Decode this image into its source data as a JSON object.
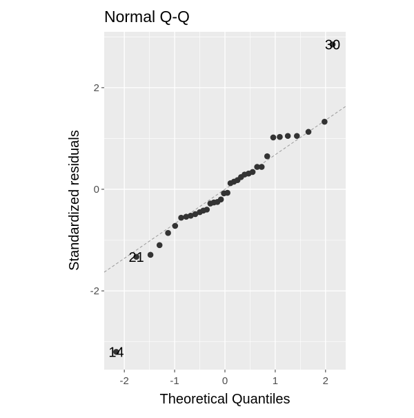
{
  "chart_data": {
    "type": "scatter",
    "title": "Normal Q-Q",
    "xlabel": "Theoretical Quantiles",
    "ylabel": "Standardized residuals",
    "xlim": [
      -2.4,
      2.4
    ],
    "ylim": [
      -3.55,
      3.1
    ],
    "x_ticks": [
      -2,
      -1,
      0,
      1,
      2
    ],
    "x_tick_labels": [
      "-2",
      "-1",
      "0",
      "1",
      "2"
    ],
    "y_ticks": [
      -2,
      0,
      2
    ],
    "y_tick_labels": [
      "-2",
      "0",
      "2"
    ],
    "grid": true,
    "background": "#EBEBEB",
    "point_color": "#333333",
    "reference_line": {
      "style": "dashed",
      "color": "#999999",
      "intercept": 0.0,
      "slope": 0.68
    },
    "points": [
      {
        "x": -2.16,
        "y": -3.2
      },
      {
        "x": -1.76,
        "y": -1.33
      },
      {
        "x": -1.48,
        "y": -1.29
      },
      {
        "x": -1.3,
        "y": -1.1
      },
      {
        "x": -1.13,
        "y": -0.86
      },
      {
        "x": -0.99,
        "y": -0.72
      },
      {
        "x": -0.87,
        "y": -0.56
      },
      {
        "x": -0.77,
        "y": -0.54
      },
      {
        "x": -0.68,
        "y": -0.52
      },
      {
        "x": -0.59,
        "y": -0.49
      },
      {
        "x": -0.5,
        "y": -0.45
      },
      {
        "x": -0.43,
        "y": -0.42
      },
      {
        "x": -0.36,
        "y": -0.4
      },
      {
        "x": -0.29,
        "y": -0.28
      },
      {
        "x": -0.22,
        "y": -0.26
      },
      {
        "x": -0.15,
        "y": -0.25
      },
      {
        "x": -0.08,
        "y": -0.2
      },
      {
        "x": -0.02,
        "y": -0.08
      },
      {
        "x": 0.05,
        "y": -0.07
      },
      {
        "x": 0.11,
        "y": 0.12
      },
      {
        "x": 0.18,
        "y": 0.15
      },
      {
        "x": 0.25,
        "y": 0.18
      },
      {
        "x": 0.32,
        "y": 0.24
      },
      {
        "x": 0.39,
        "y": 0.29
      },
      {
        "x": 0.47,
        "y": 0.31
      },
      {
        "x": 0.55,
        "y": 0.34
      },
      {
        "x": 0.64,
        "y": 0.44
      },
      {
        "x": 0.73,
        "y": 0.44
      },
      {
        "x": 0.84,
        "y": 0.65
      },
      {
        "x": 0.96,
        "y": 1.02
      },
      {
        "x": 1.09,
        "y": 1.03
      },
      {
        "x": 1.25,
        "y": 1.05
      },
      {
        "x": 1.43,
        "y": 1.05
      },
      {
        "x": 1.66,
        "y": 1.13
      },
      {
        "x": 1.98,
        "y": 1.33
      },
      {
        "x": 2.14,
        "y": 2.85
      }
    ],
    "annotations": [
      {
        "label": "14",
        "x": -2.16,
        "y": -3.2
      },
      {
        "label": "21",
        "x": -1.76,
        "y": -1.33
      },
      {
        "label": "30",
        "x": 2.14,
        "y": 2.85
      }
    ]
  }
}
